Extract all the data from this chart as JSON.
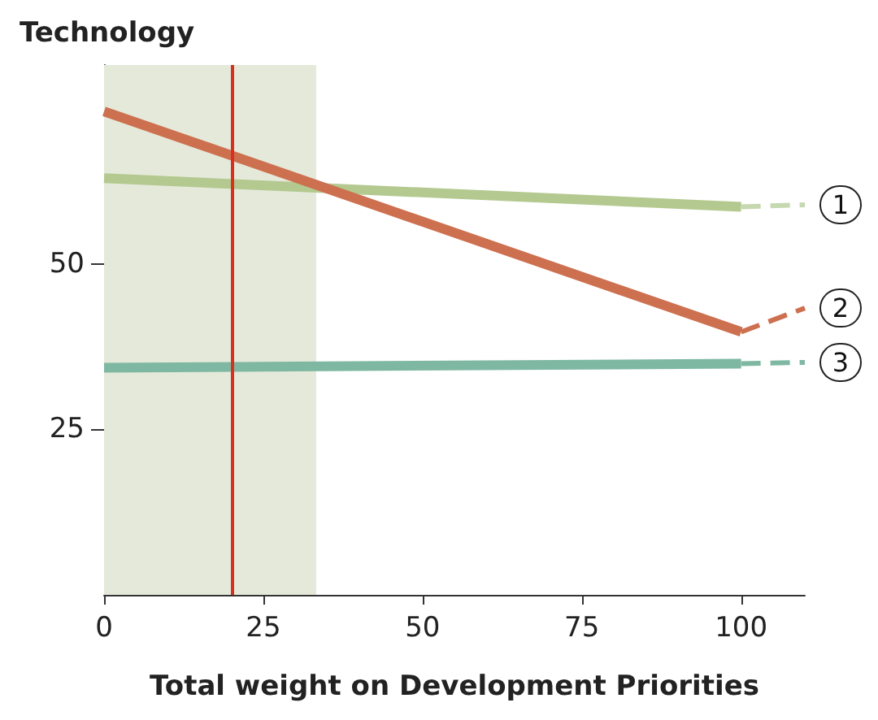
{
  "chart_data": {
    "type": "line",
    "xlabel": "Total weight on Development Priorities",
    "ylabel": "Technology",
    "xlim": [
      0,
      110
    ],
    "xticks": [
      0,
      25,
      50,
      75,
      100
    ],
    "ylim": [
      0,
      80
    ],
    "yticks": [
      25,
      50
    ],
    "grid": false,
    "legend": false,
    "marker": "none",
    "line_style": "solid",
    "series": [
      {
        "color": "#b3c98f",
        "x": [
          0,
          100
        ],
        "values": [
          62.9,
          58.6
        ]
      },
      {
        "name": "1",
        "color": "#c6d8b0",
        "x": [
          100,
          110
        ],
        "values": [
          58.6,
          58.9
        ],
        "line_style": "dashed"
      },
      {
        "color": "#cd7050",
        "x": [
          0,
          100
        ],
        "values": [
          73,
          39.7
        ]
      },
      {
        "name": "2",
        "color": "#cd7050",
        "x": [
          100,
          110
        ],
        "values": [
          39.7,
          43.3
        ],
        "line_style": "dashed"
      },
      {
        "color": "#7fb8a2",
        "x": [
          0,
          100
        ],
        "values": [
          34.3,
          34.9
        ]
      },
      {
        "name": "3",
        "color": "#7fb8a2",
        "x": [
          100,
          110
        ],
        "values": [
          34.9,
          35.1
        ],
        "line_style": "dashed"
      }
    ],
    "ref_lines": [
      {
        "axis": "x",
        "value": 20,
        "color": "#d7301f"
      }
    ],
    "bands": [
      {
        "axis": "x",
        "from": 0,
        "to": 33.3,
        "color": "#e5e9da"
      }
    ]
  }
}
